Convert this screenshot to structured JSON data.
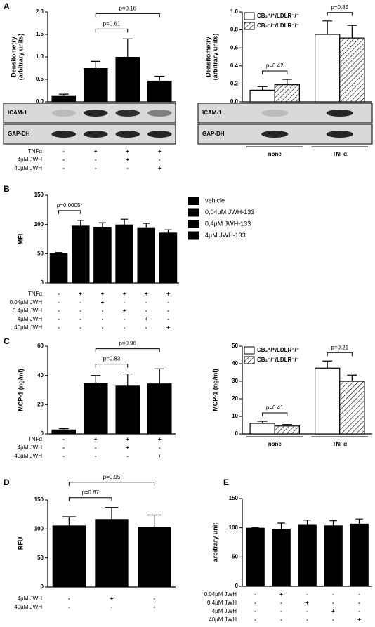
{
  "chart_data": [
    {
      "panel": "A",
      "type": "bar",
      "ylabel": [
        "Densitometry",
        "(arbitrary units)"
      ],
      "values": [
        0.13,
        0.75,
        1.0,
        0.47
      ],
      "errors": [
        0.04,
        0.15,
        0.4,
        0.1
      ],
      "color": "#000000",
      "ylim": [
        0,
        2
      ],
      "yticks": [
        {
          "value": 0,
          "label": "0.0"
        },
        0.5,
        {
          "value": 1,
          "label": "1.0"
        },
        1.5,
        {
          "value": 2,
          "label": "2.0"
        }
      ],
      "annotations": [
        {
          "text": "p=0.61",
          "between": [
            1,
            2
          ]
        },
        {
          "text": "p=0.16",
          "between": [
            1,
            3
          ]
        }
      ],
      "blot": [
        "ICAM-1",
        "GAP-DH"
      ],
      "conditions": [
        {
          "label": "TNFα",
          "signs": [
            "-",
            "+",
            "+",
            "+"
          ]
        },
        {
          "label": "4µM JWH",
          "signs": [
            "-",
            "-",
            "+",
            "-"
          ]
        },
        {
          "label": "40µM JWH",
          "signs": [
            "-",
            "-",
            "-",
            "+"
          ]
        }
      ]
    },
    {
      "type": "bar",
      "ylabel": [
        "Densitometry",
        "(arbitrary units)"
      ],
      "categories": [
        "none",
        "TNFα"
      ],
      "series": [
        {
          "name": "CB₂⁺/⁺/LDLR⁻/⁻",
          "color": "#ffffff",
          "values": [
            0.13,
            0.75
          ],
          "errors": [
            0.04,
            0.15
          ]
        },
        {
          "name": "CB₂⁻/⁻/LDLR⁻/⁻",
          "color": "#ffffff",
          "hatch": true,
          "values": [
            0.19,
            0.71
          ],
          "errors": [
            0.06,
            0.14
          ]
        }
      ],
      "ylim": [
        0,
        1
      ],
      "yticks": [
        {
          "value": 0,
          "label": "0.0"
        },
        0.2,
        0.4,
        0.6,
        0.8,
        {
          "value": 1,
          "label": "1.0"
        }
      ],
      "legend": "upper left",
      "annotations": [
        {
          "text": "p=0.42",
          "category": 0
        },
        {
          "text": "p=0.85",
          "category": 1
        }
      ],
      "blot": [
        "ICAM-1",
        "GAP-DH"
      ]
    },
    {
      "panel": "B",
      "type": "bar",
      "ylabel": [
        "MFI"
      ],
      "values": [
        51,
        98,
        95,
        100,
        94,
        86
      ],
      "errors": [
        1,
        9,
        8,
        9,
        8,
        5
      ],
      "color": "#000000",
      "ylim": [
        0,
        150
      ],
      "yticks": [
        0,
        50,
        100,
        150
      ],
      "annotations": [
        {
          "text": "p=0.0005*",
          "between": [
            0,
            1
          ]
        }
      ],
      "legend_items": [
        {
          "name": "vehicle",
          "color": "#000000"
        },
        {
          "name": "0,04µM JWH-133",
          "color": "#000000"
        },
        {
          "name": "0,4µM JWH-133",
          "color": "#000000"
        },
        {
          "name": "4µM JWH-133",
          "color": "#000000"
        }
      ],
      "conditions": [
        {
          "label": "TNFα",
          "signs": [
            "-",
            "+",
            "+",
            "+",
            "+",
            "+"
          ]
        },
        {
          "label": "0.04µM JWH",
          "signs": [
            "-",
            "-",
            "+",
            "-",
            "-",
            "-"
          ]
        },
        {
          "label": "0.4µM JWH",
          "signs": [
            "-",
            "-",
            "-",
            "+",
            "-",
            "-"
          ]
        },
        {
          "label": "4µM JWH",
          "signs": [
            "-",
            "-",
            "-",
            "-",
            "+",
            "-"
          ]
        },
        {
          "label": "40µM JWH",
          "signs": [
            "-",
            "-",
            "-",
            "-",
            "-",
            "+"
          ]
        }
      ]
    },
    {
      "panel": "C",
      "type": "bar",
      "ylabel": [
        "MCP-1 (ng/ml)"
      ],
      "values": [
        3,
        35,
        33,
        34.5
      ],
      "errors": [
        0.6,
        5,
        8,
        10
      ],
      "color": "#000000",
      "ylim": [
        0,
        60
      ],
      "yticks": [
        0,
        20,
        40,
        60
      ],
      "annotations": [
        {
          "text": "p=0.83",
          "between": [
            1,
            2
          ]
        },
        {
          "text": "p=0.96",
          "between": [
            1,
            3
          ]
        }
      ],
      "conditions": [
        {
          "label": "TNFα",
          "signs": [
            "-",
            "+",
            "+",
            "+"
          ]
        },
        {
          "label": "4µM JWH",
          "signs": [
            "-",
            "-",
            "+",
            "-"
          ]
        },
        {
          "label": "40µM JWH",
          "signs": [
            "-",
            "-",
            "-",
            "+"
          ]
        }
      ]
    },
    {
      "type": "bar",
      "ylabel": [
        "MCP-1 (ng/ml)"
      ],
      "categories": [
        "none",
        "TNFα"
      ],
      "series": [
        {
          "name": "CB₂⁺/⁺/LDLR⁻/⁻",
          "color": "#ffffff",
          "values": [
            6,
            37.5
          ],
          "errors": [
            1.2,
            4
          ]
        },
        {
          "name": "CB₂⁻/⁻/LDLR⁻/⁻",
          "color": "#ffffff",
          "hatch": true,
          "values": [
            4.5,
            30
          ],
          "errors": [
            0.8,
            3.5
          ]
        }
      ],
      "ylim": [
        0,
        50
      ],
      "yticks": [
        0,
        10,
        20,
        30,
        40,
        50
      ],
      "legend": "upper left",
      "annotations": [
        {
          "text": "p=0.41",
          "category": 0
        },
        {
          "text": "p=0.21",
          "category": 1
        }
      ]
    },
    {
      "panel": "D",
      "type": "bar",
      "ylabel": [
        "RFU"
      ],
      "values": [
        106,
        117,
        104
      ],
      "errors": [
        15,
        20,
        20
      ],
      "color": "#000000",
      "ylim": [
        0,
        150
      ],
      "yticks": [
        0,
        50,
        100,
        150
      ],
      "annotations": [
        {
          "text": "p=0.67",
          "between": [
            0,
            1
          ]
        },
        {
          "text": "p=0.95",
          "between": [
            0,
            2
          ]
        }
      ],
      "conditions": [
        {
          "label": "4µM JWH",
          "signs": [
            "-",
            "+",
            "-"
          ]
        },
        {
          "label": "40µM JWH",
          "signs": [
            "-",
            "-",
            "+"
          ]
        }
      ]
    },
    {
      "panel": "E",
      "type": "bar",
      "ylabel": [
        "arbitrary unit"
      ],
      "values": [
        100,
        98,
        105,
        104,
        107
      ],
      "errors": [
        0,
        10,
        8,
        8,
        8
      ],
      "color": "#000000",
      "ylim": [
        0,
        150
      ],
      "yticks": [
        0,
        50,
        100,
        150
      ],
      "conditions": [
        {
          "label": "0.04µM JWH",
          "signs": [
            "-",
            "+",
            "-",
            "-",
            "-"
          ]
        },
        {
          "label": "0.4µM JWH",
          "signs": [
            "-",
            "-",
            "+",
            "-",
            "-"
          ]
        },
        {
          "label": "4µM JWH",
          "signs": [
            "-",
            "-",
            "-",
            "+",
            "-"
          ]
        },
        {
          "label": "40µM JWH",
          "signs": [
            "-",
            "-",
            "-",
            "-",
            "+"
          ]
        }
      ]
    }
  ]
}
